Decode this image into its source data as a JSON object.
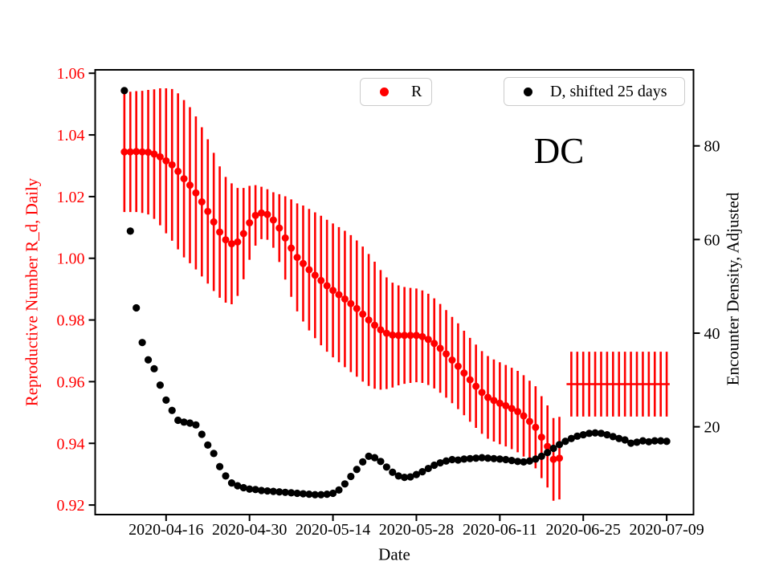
{
  "chart_data": {
    "type": "scatter",
    "title": "DC",
    "xlabel": "Date",
    "ylabel_left": "Reproductive Number R_d, Daily",
    "ylabel_right": "Encounter Density, Adjusted",
    "grid": false,
    "colors": {
      "r_series": "#ff0000",
      "d_series": "#000000",
      "left_axis_text": "#ff0000",
      "right_axis_text": "#000000",
      "legend_border": "#cccccc",
      "spine": "#000000"
    },
    "legend": {
      "entries": [
        "R",
        "D, shifted 25 days"
      ],
      "position": "upper center, two separate boxes"
    },
    "x_tick_labels": [
      "2020-04-16",
      "2020-04-30",
      "2020-05-14",
      "2020-05-28",
      "2020-06-11",
      "2020-06-25",
      "2020-07-09"
    ],
    "y_ticks_left": [
      "1.06",
      "1.04",
      "1.02",
      "1.00",
      "0.98",
      "0.96",
      "0.94",
      "0.92"
    ],
    "y_ticks_right": [
      "80",
      "60",
      "40",
      "20"
    ],
    "x_origin_date": "2020-04-09",
    "xlim_days": [
      -4.9,
      95.5
    ],
    "ylim_left": [
      0.9169,
      1.0611
    ],
    "ylim_right": [
      1.25,
      96.24
    ],
    "series": [
      {
        "name": "R",
        "axis": "left",
        "color": "#ff0000",
        "marker": "circle",
        "errorbars": true,
        "start_date": "2020-04-09",
        "values": [
          1.0345,
          1.0345,
          1.0346,
          1.0345,
          1.0344,
          1.0338,
          1.0329,
          1.0316,
          1.0303,
          1.0282,
          1.0258,
          1.0237,
          1.0212,
          1.0183,
          1.0152,
          1.0118,
          1.0085,
          1.006,
          1.0047,
          1.0053,
          1.008,
          1.0115,
          1.0139,
          1.0147,
          1.0142,
          1.0124,
          1.0098,
          1.0066,
          1.0033,
          1.0003,
          0.9983,
          0.9963,
          0.9945,
          0.9928,
          0.9911,
          0.9896,
          0.9882,
          0.9868,
          0.9853,
          0.9837,
          0.9819,
          0.98,
          0.9783,
          0.9768,
          0.9757,
          0.9751,
          0.975,
          0.975,
          0.975,
          0.975,
          0.9746,
          0.9737,
          0.9724,
          0.9708,
          0.969,
          0.967,
          0.965,
          0.9628,
          0.9606,
          0.9585,
          0.9565,
          0.9549,
          0.9539,
          0.953,
          0.9522,
          0.9513,
          0.9503,
          0.9489,
          0.9471,
          0.9452,
          0.942,
          0.939,
          0.9348,
          0.9352
        ],
        "errors": [
          0.0195,
          0.0195,
          0.0196,
          0.0198,
          0.0202,
          0.021,
          0.0222,
          0.0235,
          0.0246,
          0.0253,
          0.0255,
          0.0253,
          0.0248,
          0.0242,
          0.0234,
          0.0224,
          0.0213,
          0.0204,
          0.0196,
          0.0175,
          0.0148,
          0.012,
          0.0098,
          0.0085,
          0.0082,
          0.009,
          0.011,
          0.0135,
          0.0158,
          0.0175,
          0.0188,
          0.0197,
          0.0204,
          0.021,
          0.0214,
          0.0217,
          0.0219,
          0.0221,
          0.0222,
          0.0221,
          0.0219,
          0.0214,
          0.0206,
          0.0194,
          0.0181,
          0.017,
          0.0162,
          0.0157,
          0.0154,
          0.0152,
          0.015,
          0.0148,
          0.0146,
          0.0144,
          0.0142,
          0.014,
          0.0139,
          0.0137,
          0.0136,
          0.0135,
          0.0134,
          0.0134,
          0.0133,
          0.0133,
          0.0132,
          0.0132,
          0.0132,
          0.0132,
          0.0132,
          0.0133,
          0.0133,
          0.0133,
          0.0134,
          0.0134
        ],
        "flat_segment": {
          "start_date": "2020-06-23",
          "end_date": "2020-07-09",
          "value": 0.9592,
          "error": 0.0105
        }
      },
      {
        "name": "D, shifted 25 days",
        "axis": "right",
        "color": "#000000",
        "marker": "circle",
        "errorbars": false,
        "start_date": "2020-04-09",
        "values": [
          91.8,
          61.8,
          45.4,
          38.0,
          34.3,
          32.4,
          28.9,
          25.7,
          23.5,
          21.4,
          21.0,
          20.8,
          20.4,
          18.4,
          16.1,
          14.3,
          11.5,
          9.5,
          8.0,
          7.4,
          7.0,
          6.7,
          6.6,
          6.4,
          6.3,
          6.2,
          6.1,
          6.0,
          5.9,
          5.8,
          5.7,
          5.6,
          5.5,
          5.5,
          5.6,
          5.8,
          6.5,
          7.8,
          9.4,
          10.9,
          12.5,
          13.7,
          13.4,
          12.6,
          11.4,
          10.3,
          9.5,
          9.2,
          9.3,
          9.8,
          10.4,
          11.1,
          11.8,
          12.3,
          12.7,
          13.0,
          12.9,
          13.1,
          13.2,
          13.3,
          13.4,
          13.3,
          13.2,
          13.1,
          13.0,
          12.8,
          12.6,
          12.5,
          12.7,
          13.1,
          13.7,
          14.5,
          15.4,
          16.2,
          16.9,
          17.5,
          18.0,
          18.3,
          18.6,
          18.7,
          18.6,
          18.3,
          17.9,
          17.5,
          17.2,
          16.5,
          16.7,
          17.0,
          16.8,
          17.0,
          17.0,
          16.9
        ]
      }
    ]
  }
}
